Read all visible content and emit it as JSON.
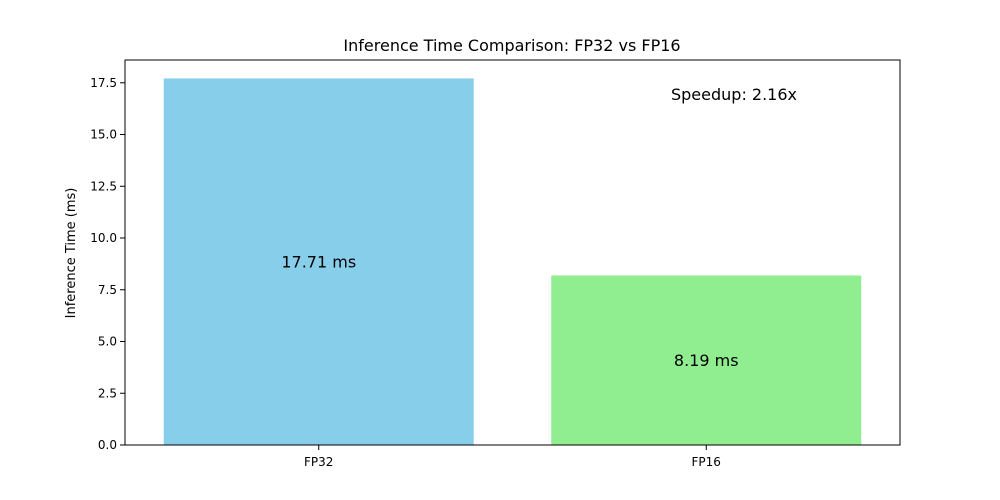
{
  "chart_data": {
    "type": "bar",
    "title": "Inference Time Comparison: FP32 vs FP16",
    "xlabel": "",
    "ylabel": "Inference Time (ms)",
    "categories": [
      "FP32",
      "FP16"
    ],
    "values": [
      17.71,
      8.19
    ],
    "value_labels": [
      "17.71 ms",
      "8.19 ms"
    ],
    "colors": [
      "#87ceeb",
      "#90ee90"
    ],
    "ylim": [
      0,
      18.6
    ],
    "yticks": [
      0.0,
      2.5,
      5.0,
      7.5,
      10.0,
      12.5,
      15.0,
      17.5
    ],
    "ytick_labels": [
      "0.0",
      "2.5",
      "5.0",
      "7.5",
      "10.0",
      "12.5",
      "15.0",
      "17.5"
    ],
    "annotation": "Speedup: 2.16x",
    "grid": false
  }
}
